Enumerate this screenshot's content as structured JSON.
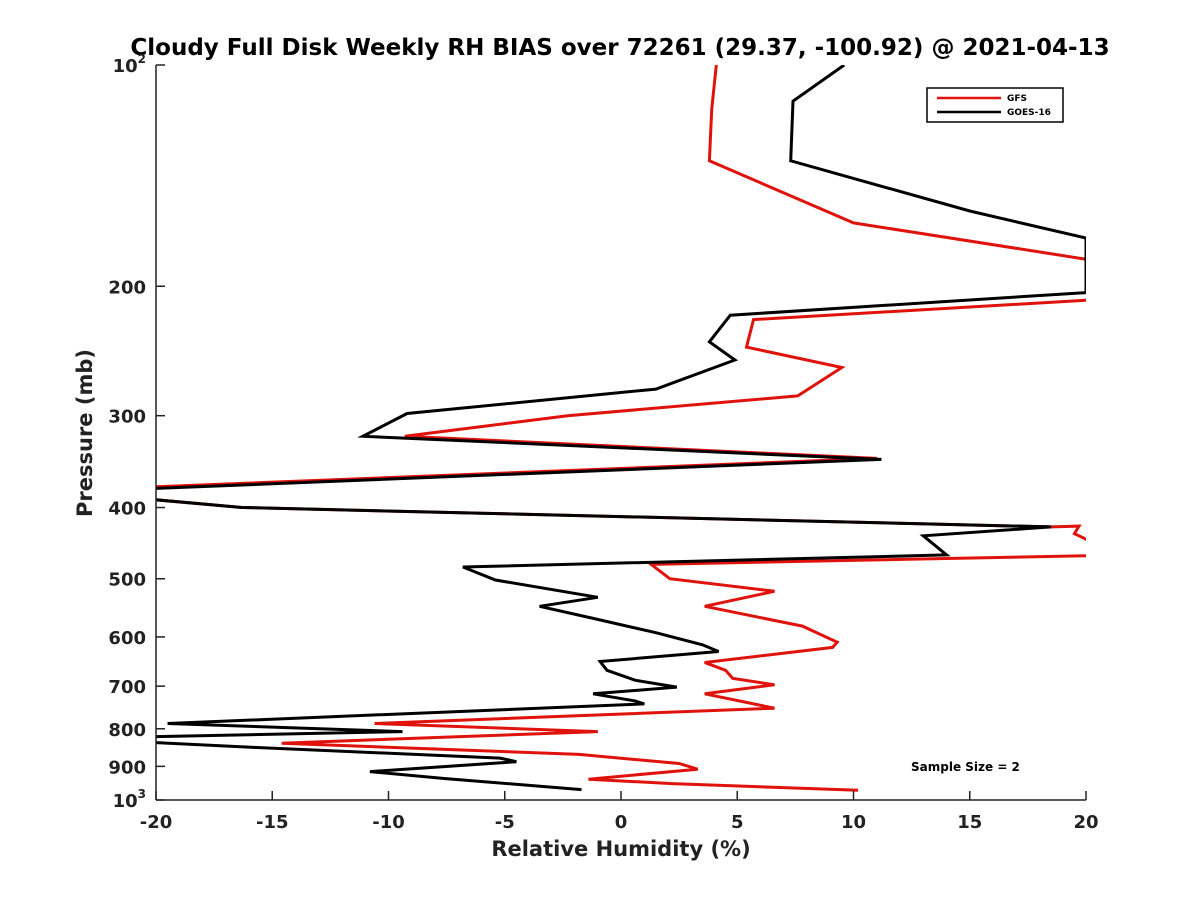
{
  "chart_data": {
    "type": "line",
    "title": "Cloudy Full Disk Weekly RH BIAS over 72261 (29.37, -100.92) @ 2021-04-13",
    "xlabel": "Relative Humidity (%)",
    "ylabel": "Pressure (mb)",
    "xlim": [
      -20,
      20
    ],
    "ylim": [
      100,
      1000
    ],
    "y_scale": "log",
    "y_reversed": true,
    "x_ticks": [
      "-20",
      "-15",
      "-10",
      "-5",
      "0",
      "5",
      "10",
      "15",
      "20"
    ],
    "y_ticks": [
      {
        "value": 100,
        "label": "10",
        "sup": "2"
      },
      {
        "value": 200,
        "label": "200",
        "sup": ""
      },
      {
        "value": 300,
        "label": "300",
        "sup": ""
      },
      {
        "value": 400,
        "label": "400",
        "sup": ""
      },
      {
        "value": 500,
        "label": "500",
        "sup": ""
      },
      {
        "value": 600,
        "label": "600",
        "sup": ""
      },
      {
        "value": 700,
        "label": "700",
        "sup": ""
      },
      {
        "value": 800,
        "label": "800",
        "sup": ""
      },
      {
        "value": 900,
        "label": "900",
        "sup": ""
      },
      {
        "value": 1000,
        "label": "10",
        "sup": "3"
      }
    ],
    "legend": {
      "position": "top-right",
      "entries": [
        "GFS",
        "GOES-16"
      ]
    },
    "annotation": "Sample Size = 2",
    "grid": false,
    "series": [
      {
        "name": "GFS",
        "color": "#e0120c",
        "points": [
          [
            4.1,
            100
          ],
          [
            3.9,
            115
          ],
          [
            3.8,
            135
          ],
          [
            10.0,
            164
          ],
          [
            22.0,
            188
          ],
          [
            22.0,
            205
          ],
          [
            20.0,
            209
          ],
          [
            5.7,
            222
          ],
          [
            5.4,
            242
          ],
          [
            9.5,
            258
          ],
          [
            7.6,
            282
          ],
          [
            -2.3,
            300
          ],
          [
            -9.3,
            320
          ],
          [
            11.0,
            343
          ],
          [
            -20.2,
            375
          ],
          [
            -20.2,
            390
          ],
          [
            -16.3,
            400
          ],
          [
            18.5,
            425
          ],
          [
            19.7,
            424
          ],
          [
            19.5,
            434
          ],
          [
            20.2,
            445
          ],
          [
            20.2,
            465
          ],
          [
            1.3,
            478
          ],
          [
            2.1,
            500
          ],
          [
            6.6,
            520
          ],
          [
            3.6,
            545
          ],
          [
            7.8,
            580
          ],
          [
            9.3,
            610
          ],
          [
            9.1,
            620
          ],
          [
            3.6,
            650
          ],
          [
            4.5,
            666
          ],
          [
            4.8,
            683
          ],
          [
            6.6,
            697
          ],
          [
            3.6,
            717
          ],
          [
            6.6,
            750
          ],
          [
            -10.6,
            787
          ],
          [
            -1.0,
            807
          ],
          [
            -14.6,
            837
          ],
          [
            -1.8,
            867
          ],
          [
            2.5,
            892
          ],
          [
            3.3,
            908
          ],
          [
            -1.4,
            937
          ],
          [
            2.2,
            950
          ],
          [
            10.2,
            970
          ]
        ]
      },
      {
        "name": "GOES-16",
        "color": "#000000",
        "points": [
          [
            9.6,
            100
          ],
          [
            7.4,
            112
          ],
          [
            7.3,
            135
          ],
          [
            15.0,
            158
          ],
          [
            20.0,
            172
          ],
          [
            20.0,
            204
          ],
          [
            4.7,
            219
          ],
          [
            3.8,
            238
          ],
          [
            4.9,
            252
          ],
          [
            1.5,
            276
          ],
          [
            -9.2,
            298
          ],
          [
            -11.1,
            320
          ],
          [
            11.2,
            344
          ],
          [
            -20.2,
            377
          ],
          [
            -20.2,
            390
          ],
          [
            -16.3,
            400
          ],
          [
            18.5,
            425
          ],
          [
            13.0,
            437
          ],
          [
            14.0,
            464
          ],
          [
            -6.8,
            482
          ],
          [
            -5.4,
            502
          ],
          [
            -1.0,
            530
          ],
          [
            -3.5,
            545
          ],
          [
            -1.1,
            567
          ],
          [
            1.5,
            592
          ],
          [
            3.5,
            615
          ],
          [
            4.2,
            628
          ],
          [
            -0.9,
            648
          ],
          [
            -0.6,
            666
          ],
          [
            0.6,
            687
          ],
          [
            2.4,
            702
          ],
          [
            -1.2,
            717
          ],
          [
            0.6,
            733
          ],
          [
            1.0,
            740
          ],
          [
            -19.5,
            787
          ],
          [
            -9.4,
            807
          ],
          [
            -20.2,
            820
          ],
          [
            -20.2,
            835
          ],
          [
            -15.8,
            848
          ],
          [
            -5.2,
            877
          ],
          [
            -4.5,
            887
          ],
          [
            -10.8,
            915
          ],
          [
            -7.6,
            935
          ],
          [
            -1.7,
            968
          ]
        ]
      }
    ]
  }
}
